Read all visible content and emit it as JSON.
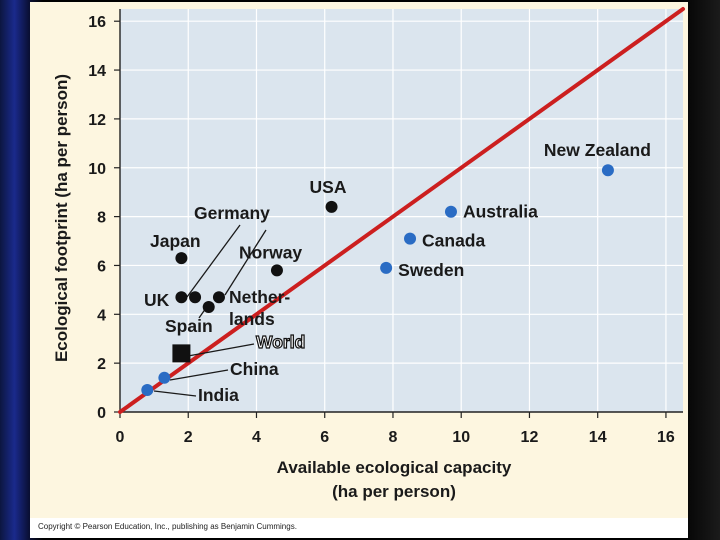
{
  "chart_data": {
    "type": "scatter",
    "xlabel": [
      "Available ecological capacity",
      "(ha per person)"
    ],
    "ylabel": "Ecological footprint (ha per person)",
    "xlim": [
      0,
      16.5
    ],
    "ylim": [
      0,
      16.5
    ],
    "xticks": [
      0,
      2,
      4,
      6,
      8,
      10,
      12,
      14,
      16
    ],
    "yticks": [
      0,
      2,
      4,
      6,
      8,
      10,
      12,
      14,
      16
    ],
    "grid": true,
    "reference_line": {
      "slope": 1,
      "intercept": 0,
      "color": "#cc1f1f"
    },
    "points": [
      {
        "name": "New Zealand",
        "x": 14.3,
        "y": 9.9,
        "color": "#2a6cc4",
        "shape": "circle"
      },
      {
        "name": "Australia",
        "x": 9.7,
        "y": 8.2,
        "color": "#2a6cc4",
        "shape": "circle"
      },
      {
        "name": "Canada",
        "x": 8.5,
        "y": 7.1,
        "color": "#2a6cc4",
        "shape": "circle"
      },
      {
        "name": "Sweden",
        "x": 7.8,
        "y": 5.9,
        "color": "#2a6cc4",
        "shape": "circle"
      },
      {
        "name": "USA",
        "x": 6.2,
        "y": 8.4,
        "color": "#111111",
        "shape": "circle"
      },
      {
        "name": "Norway",
        "x": 4.6,
        "y": 5.8,
        "color": "#111111",
        "shape": "circle"
      },
      {
        "name": "Germany",
        "x": 2.2,
        "y": 4.7,
        "color": "#111111",
        "shape": "circle"
      },
      {
        "name": "Japan",
        "x": 1.8,
        "y": 6.3,
        "color": "#111111",
        "shape": "circle"
      },
      {
        "name": "UK",
        "x": 1.8,
        "y": 4.7,
        "color": "#111111",
        "shape": "circle"
      },
      {
        "name": "Spain",
        "x": 2.6,
        "y": 4.3,
        "color": "#111111",
        "shape": "circle"
      },
      {
        "name": "Nether-\nlands",
        "x": 2.9,
        "y": 4.7,
        "color": "#111111",
        "shape": "circle"
      },
      {
        "name": "World",
        "x": 1.8,
        "y": 2.4,
        "color": "#111111",
        "shape": "square"
      },
      {
        "name": "China",
        "x": 1.3,
        "y": 1.4,
        "color": "#2a6cc4",
        "shape": "circle"
      },
      {
        "name": "India",
        "x": 0.8,
        "y": 0.9,
        "color": "#2a6cc4",
        "shape": "circle"
      }
    ],
    "colors": {
      "plot_bg": "#dbe5ee",
      "outer_bg": "#fdf6e0",
      "grid": "#ffffff",
      "line": "#cc1f1f"
    }
  },
  "footer": {
    "copyright": "Copyright © Pearson Education, Inc., publishing as Benjamin Cummings."
  }
}
